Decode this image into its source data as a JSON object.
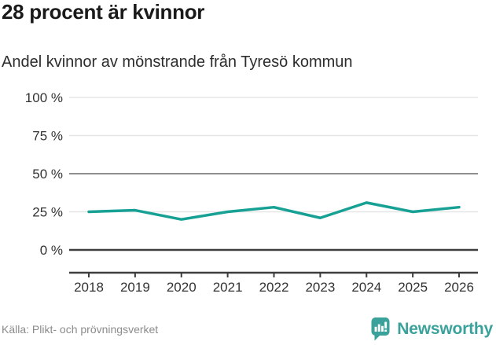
{
  "header": {
    "title": "28 procent är kvinnor",
    "subtitle": "Andel kvinnor av mönstrande från Tyresö kommun"
  },
  "chart_data": {
    "type": "line",
    "title": "28 procent är kvinnor",
    "subtitle": "Andel kvinnor av mönstrande från Tyresö kommun",
    "categories": [
      "2018",
      "2019",
      "2020",
      "2021",
      "2022",
      "2023",
      "2024",
      "2025",
      "2026"
    ],
    "series": [
      {
        "name": "Andel kvinnor",
        "values": [
          25,
          26,
          20,
          25,
          28,
          21,
          31,
          25,
          28
        ]
      }
    ],
    "unit": "%",
    "ylim": [
      0,
      100
    ],
    "yticks": [
      0,
      25,
      50,
      75,
      100
    ],
    "ytick_labels": [
      "0 %",
      "25 %",
      "50 %",
      "75 %",
      "100 %"
    ],
    "reference_line": 50,
    "grid": true,
    "legend": "none",
    "source": "Källa: Plikt- och prövningsverket"
  },
  "footer": {
    "source": "Källa: Plikt- och prövningsverket",
    "brand_name": "Newsworthy"
  },
  "colors": {
    "line": "#17a195",
    "grid_light": "#e6e6e6",
    "grid_reference": "#8f8f8f",
    "axis": "#3d3d3d",
    "brand_teal": "#3aa29b",
    "background": "#ffffff"
  }
}
